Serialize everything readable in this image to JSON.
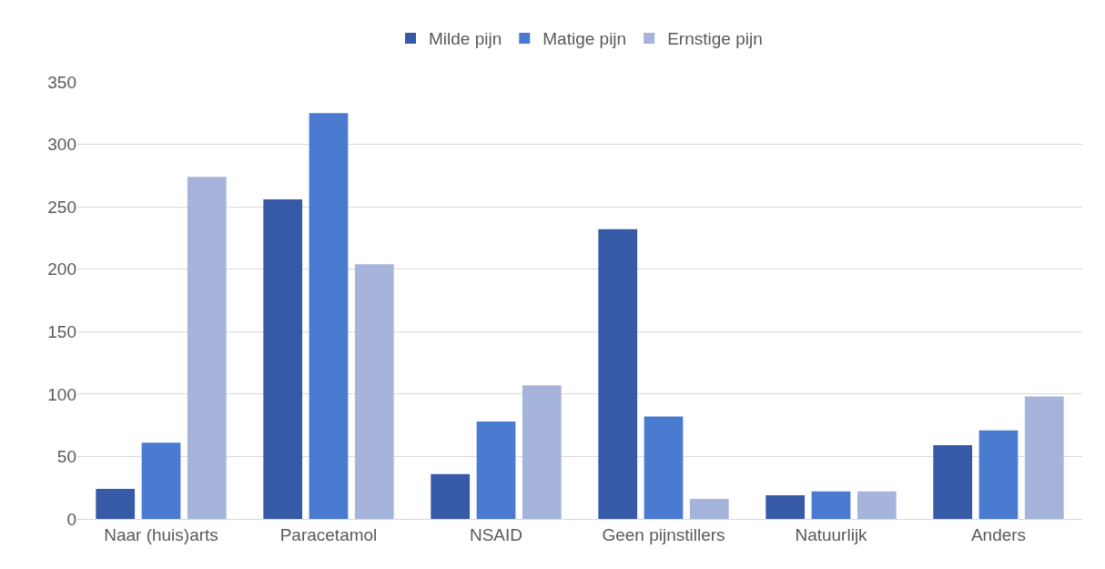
{
  "chart_data": {
    "type": "bar",
    "categories": [
      "Naar (huis)arts",
      "Paracetamol",
      "NSAID",
      "Geen pijnstillers",
      "Natuurlijk",
      "Anders"
    ],
    "series": [
      {
        "name": "Milde pijn",
        "color": "#3659a8",
        "values": [
          24,
          256,
          36,
          232,
          19,
          59
        ]
      },
      {
        "name": "Matige pijn",
        "color": "#4a7bd0",
        "values": [
          61,
          325,
          78,
          82,
          22,
          71
        ]
      },
      {
        "name": "Ernstige pijn",
        "color": "#a6b4dc",
        "values": [
          274,
          204,
          107,
          16,
          22,
          98
        ]
      }
    ],
    "ylim": [
      0,
      350
    ],
    "yticks": [
      0,
      50,
      100,
      150,
      200,
      250,
      300,
      350
    ],
    "grid": "y",
    "legend": "top"
  }
}
